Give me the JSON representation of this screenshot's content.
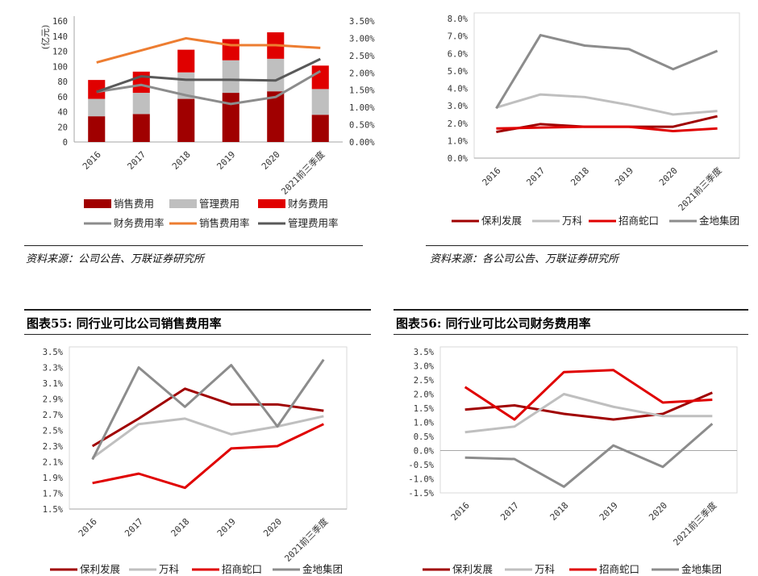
{
  "sources": {
    "left": "资料来源：公司公告、万联证券研究所",
    "right": "资料来源：各公司公告、万联证券研究所"
  },
  "titles": {
    "chart55": "图表55: 同行业可比公司销售费用率",
    "chart56": "图表56: 同行业可比公司财务费用率"
  },
  "chart_data": [
    {
      "id": "c1",
      "type": "bar",
      "stacked": true,
      "categories": [
        "2016",
        "2017",
        "2018",
        "2019",
        "2020",
        "2021前三季度"
      ],
      "ylabel": "(亿元)",
      "ylim": [
        0,
        160
      ],
      "yticks": [
        "0",
        "20",
        "40",
        "60",
        "80",
        "100",
        "120",
        "140",
        "160"
      ],
      "y2lim": [
        0,
        3.5
      ],
      "y2ticks": [
        "0.00%",
        "0.50%",
        "1.00%",
        "1.50%",
        "2.00%",
        "2.50%",
        "3.00%",
        "3.50%"
      ],
      "series": [
        {
          "name": "销售费用",
          "color": "#a00000",
          "values": [
            34,
            37,
            57,
            65,
            67,
            36
          ]
        },
        {
          "name": "管理费用",
          "color": "#bfbfbf",
          "values": [
            23,
            28,
            35,
            43,
            43,
            34
          ]
        },
        {
          "name": "财务费用",
          "color": "#e00000",
          "values": [
            25,
            28,
            30,
            28,
            35,
            31
          ]
        }
      ],
      "line_series": [
        {
          "name": "财务费用率",
          "color": "#8c8c8c",
          "values": [
            1.45,
            1.65,
            1.35,
            1.1,
            1.3,
            2.05
          ]
        },
        {
          "name": "销售费用率",
          "color": "#ed7d31",
          "values": [
            2.3,
            2.65,
            3.0,
            2.8,
            2.8,
            2.72
          ]
        },
        {
          "name": "管理费用率",
          "color": "#595959",
          "values": [
            1.45,
            1.9,
            1.8,
            1.8,
            1.78,
            2.4
          ]
        }
      ],
      "legend": "bottom"
    },
    {
      "id": "c2",
      "type": "line",
      "categories": [
        "2016",
        "2017",
        "2018",
        "2019",
        "2020",
        "2021前三季度"
      ],
      "ylim": [
        0,
        8
      ],
      "yticks": [
        "0.0%",
        "1.0%",
        "2.0%",
        "3.0%",
        "4.0%",
        "5.0%",
        "6.0%",
        "7.0%",
        "8.0%"
      ],
      "series": [
        {
          "name": "保利发展",
          "color": "#a00000",
          "values": [
            1.5,
            1.95,
            1.8,
            1.8,
            1.8,
            2.4
          ]
        },
        {
          "name": "万科",
          "color": "#bfbfbf",
          "values": [
            2.9,
            3.65,
            3.5,
            3.05,
            2.5,
            2.7
          ]
        },
        {
          "name": "招商蛇口",
          "color": "#e00000",
          "values": [
            1.7,
            1.75,
            1.8,
            1.8,
            1.55,
            1.7
          ]
        },
        {
          "name": "金地集团",
          "color": "#8c8c8c",
          "values": [
            2.85,
            7.05,
            6.45,
            6.25,
            5.1,
            6.15
          ]
        }
      ],
      "legend": "bottom"
    },
    {
      "id": "c3",
      "type": "line",
      "categories": [
        "2016",
        "2017",
        "2018",
        "2019",
        "2020",
        "2021前三季度"
      ],
      "ylim": [
        1.5,
        3.5
      ],
      "yticks": [
        "1.5%",
        "1.7%",
        "1.9%",
        "2.1%",
        "2.3%",
        "2.5%",
        "2.7%",
        "2.9%",
        "3.1%",
        "3.3%",
        "3.5%"
      ],
      "series": [
        {
          "name": "保利发展",
          "color": "#a00000",
          "values": [
            2.3,
            2.65,
            3.03,
            2.83,
            2.83,
            2.75
          ]
        },
        {
          "name": "万科",
          "color": "#bfbfbf",
          "values": [
            2.15,
            2.58,
            2.65,
            2.45,
            2.55,
            2.68
          ]
        },
        {
          "name": "招商蛇口",
          "color": "#e00000",
          "values": [
            1.83,
            1.95,
            1.77,
            2.27,
            2.3,
            2.58
          ]
        },
        {
          "name": "金地集团",
          "color": "#8c8c8c",
          "values": [
            2.13,
            3.3,
            2.8,
            3.33,
            2.55,
            3.4
          ]
        }
      ],
      "legend": "bottom"
    },
    {
      "id": "c4",
      "type": "line",
      "categories": [
        "2016",
        "2017",
        "2018",
        "2019",
        "2020",
        "2021前三季度"
      ],
      "ylim": [
        -1.5,
        3.5
      ],
      "yticks": [
        "-1.5%",
        "-1.0%",
        "-0.5%",
        "0.0%",
        "0.5%",
        "1.0%",
        "1.5%",
        "2.0%",
        "2.5%",
        "3.0%",
        "3.5%"
      ],
      "series": [
        {
          "name": "保利发展",
          "color": "#a00000",
          "values": [
            1.45,
            1.6,
            1.3,
            1.1,
            1.3,
            2.05
          ]
        },
        {
          "name": "万科",
          "color": "#bfbfbf",
          "values": [
            0.65,
            0.85,
            2.0,
            1.55,
            1.22,
            1.22
          ]
        },
        {
          "name": "招商蛇口",
          "color": "#e00000",
          "values": [
            2.25,
            1.1,
            2.78,
            2.85,
            1.7,
            1.8
          ]
        },
        {
          "name": "金地集团",
          "color": "#8c8c8c",
          "values": [
            -0.25,
            -0.3,
            -1.28,
            0.18,
            -0.58,
            0.95
          ]
        }
      ],
      "legend": "bottom"
    }
  ]
}
